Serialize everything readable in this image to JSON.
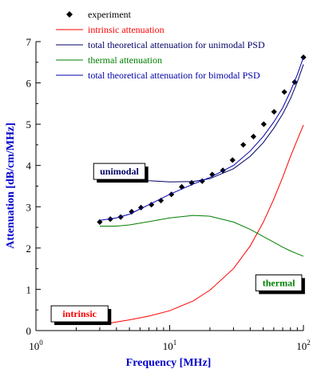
{
  "colors": {
    "experiment": "#000000",
    "intrinsic": "#ff0000",
    "unimodal": "#000066",
    "thermal": "#008000",
    "bimodal": "#0000aa",
    "axis_title": "#0000cc",
    "axis": "#000000"
  },
  "chart_data": {
    "type": "scatter",
    "title": "",
    "xlabel": "Frequency [MHz]",
    "ylabel": "Attenuation [dB/cm/MHz]",
    "xscale": "log",
    "xlim": [
      1,
      100
    ],
    "ylim": [
      0,
      7
    ],
    "x_ticks": [
      {
        "value": 1,
        "base": "10",
        "exp": "0"
      },
      {
        "value": 10,
        "base": "10",
        "exp": "1"
      },
      {
        "value": 100,
        "base": "10",
        "exp": "2"
      }
    ],
    "y_ticks": [
      {
        "value": 0,
        "label": "0"
      },
      {
        "value": 1,
        "label": "1"
      },
      {
        "value": 2,
        "label": "2"
      },
      {
        "value": 3,
        "label": "3"
      },
      {
        "value": 4,
        "label": "4"
      },
      {
        "value": 5,
        "label": "5"
      },
      {
        "value": 6,
        "label": "6"
      },
      {
        "value": 7,
        "label": "7"
      }
    ],
    "grid": false,
    "legend_position": "top",
    "legend": [
      {
        "key": "experiment",
        "label": "experiment",
        "marker": "diamond"
      },
      {
        "key": "intrinsic",
        "label": "intrinsic attenuation",
        "marker": "line"
      },
      {
        "key": "unimodal",
        "label": "total theoretical attenuation for unimodal PSD",
        "marker": "line"
      },
      {
        "key": "thermal",
        "label": "thermal attenuation",
        "marker": "line"
      },
      {
        "key": "bimodal",
        "label": "total theoretical attenuation for bimodal PSD",
        "marker": "line"
      }
    ],
    "series": [
      {
        "key": "experiment",
        "name": "experiment",
        "kind": "scatter",
        "x": [
          3.0,
          3.6,
          4.3,
          5.2,
          6.1,
          7.3,
          8.6,
          10.3,
          12.3,
          14.6,
          17.5,
          20.8,
          25.0,
          29.5,
          35.5,
          42.3,
          50.5,
          60.3,
          72.0,
          86.0,
          100.0
        ],
        "y": [
          2.63,
          2.7,
          2.75,
          2.88,
          2.98,
          3.05,
          3.15,
          3.3,
          3.48,
          3.58,
          3.62,
          3.78,
          3.88,
          4.13,
          4.5,
          4.7,
          5.0,
          5.3,
          5.78,
          6.02,
          6.62
        ]
      },
      {
        "key": "intrinsic",
        "name": "intrinsic attenuation",
        "kind": "line",
        "x": [
          3,
          4,
          5,
          7,
          10,
          15,
          20,
          30,
          40,
          50,
          60,
          70,
          80,
          90,
          100
        ],
        "y": [
          0.14,
          0.21,
          0.26,
          0.35,
          0.48,
          0.72,
          0.98,
          1.5,
          2.05,
          2.62,
          3.18,
          3.72,
          4.22,
          4.62,
          4.98
        ]
      },
      {
        "key": "unimodal",
        "name": "total theoretical attenuation for unimodal PSD",
        "kind": "line",
        "x": [
          3,
          4,
          5,
          7,
          10,
          15,
          20,
          30,
          40,
          50,
          60,
          70,
          80,
          90,
          100
        ],
        "y": [
          3.75,
          3.72,
          3.68,
          3.63,
          3.6,
          3.61,
          3.68,
          3.92,
          4.22,
          4.55,
          4.9,
          5.25,
          5.62,
          6.02,
          6.45
        ]
      },
      {
        "key": "thermal",
        "name": "thermal attenuation",
        "kind": "line",
        "x": [
          3,
          4,
          5,
          7,
          10,
          15,
          20,
          30,
          40,
          50,
          60,
          70,
          80,
          90,
          100
        ],
        "y": [
          2.53,
          2.53,
          2.56,
          2.64,
          2.73,
          2.79,
          2.77,
          2.63,
          2.45,
          2.28,
          2.14,
          2.02,
          1.93,
          1.86,
          1.8
        ]
      },
      {
        "key": "bimodal",
        "name": "total theoretical attenuation for bimodal PSD",
        "kind": "line",
        "x": [
          3,
          4,
          5,
          7,
          10,
          15,
          20,
          30,
          40,
          50,
          60,
          70,
          80,
          90,
          100
        ],
        "y": [
          2.67,
          2.73,
          2.82,
          3.05,
          3.3,
          3.55,
          3.71,
          4.0,
          4.35,
          4.7,
          5.05,
          5.4,
          5.8,
          6.2,
          6.62
        ]
      }
    ],
    "annotations": [
      {
        "key": "unimodal",
        "text": "unimodal",
        "color": "#000066",
        "at": [
          2.7,
          4.05
        ]
      },
      {
        "key": "thermal",
        "text": "thermal",
        "color": "#008000",
        "at": [
          44,
          1.35
        ]
      },
      {
        "key": "intrinsic",
        "text": "intrinsic",
        "color": "#ff0000",
        "at": [
          1.3,
          0.6
        ]
      }
    ]
  }
}
